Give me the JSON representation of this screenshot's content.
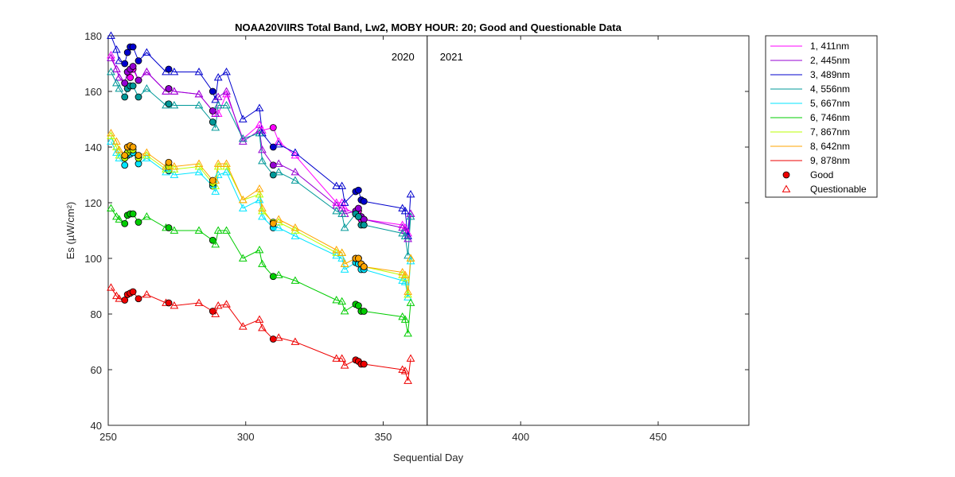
{
  "chart_data": {
    "type": "line",
    "title": "NOAA20VIIRS Total Band,  Lw2, MOBY HOUR: 20;  Good and Questionable Data",
    "xlabel": "Sequential Day",
    "ylabel": "Es (µW/cm²)",
    "xlim": [
      250,
      483
    ],
    "ylim": [
      40,
      180
    ],
    "xticks": [
      250,
      300,
      350,
      400,
      450
    ],
    "yticks": [
      40,
      60,
      80,
      100,
      120,
      140,
      160,
      180
    ],
    "grid": false,
    "legend_placement": "outside-right",
    "year_divider_x": 366,
    "year_labels": [
      {
        "text": "2020",
        "x": 366,
        "side": "left"
      },
      {
        "text": "2021",
        "x": 366,
        "side": "right"
      }
    ],
    "legend": {
      "good": "Good",
      "questionable": "Questionable"
    },
    "days": [
      251,
      253,
      254,
      256,
      257,
      258,
      259,
      261,
      264,
      271,
      272,
      274,
      283,
      288,
      289,
      290,
      293,
      299,
      305,
      306,
      310,
      312,
      318,
      333,
      335,
      336,
      340,
      341,
      342,
      343,
      357,
      358,
      359,
      360
    ],
    "quality": [
      "Q",
      "Q",
      "Q",
      "G",
      "G",
      "G",
      "G",
      "G",
      "Q",
      "Q",
      "G",
      "Q",
      "Q",
      "G",
      "Q",
      "Q",
      "Q",
      "Q",
      "Q",
      "Q",
      "G",
      "Q",
      "Q",
      "Q",
      "Q",
      "Q",
      "G",
      "G",
      "G",
      "G",
      "Q",
      "Q",
      "Q",
      "Q"
    ],
    "series": [
      {
        "name": "1, 411nm",
        "color": "#ff00ff",
        "values": [
          173,
          168,
          165,
          163,
          167,
          165,
          168,
          164,
          167,
          160,
          161,
          160,
          159,
          153,
          152,
          152,
          159,
          143,
          148,
          146,
          147,
          142,
          137,
          120,
          120,
          118,
          116,
          117,
          114,
          114,
          112,
          111,
          109,
          116
        ]
      },
      {
        "name": "2, 445nm",
        "color": "#9400d3",
        "values": [
          172,
          168,
          165,
          163,
          167,
          168,
          169,
          164,
          167,
          160,
          161,
          160,
          159,
          153,
          152,
          158,
          160,
          142,
          146,
          139,
          133.5,
          134,
          131,
          119,
          118,
          116,
          117,
          118,
          115,
          114,
          111,
          110,
          107,
          116
        ]
      },
      {
        "name": "3, 489nm",
        "color": "#0000cd",
        "values": [
          180,
          175,
          171,
          170,
          174,
          176,
          176,
          171,
          174,
          167,
          168,
          167,
          167,
          160,
          157,
          165,
          167,
          150,
          154,
          145,
          140,
          141,
          138,
          126,
          126,
          120,
          124,
          124.5,
          121,
          120.5,
          118,
          117,
          108,
          123
        ]
      },
      {
        "name": "4, 556nm",
        "color": "#009999",
        "values": [
          167,
          163,
          161,
          158,
          161,
          162,
          162,
          158,
          161,
          155,
          155.5,
          155,
          155,
          149,
          147,
          155,
          155,
          143,
          145,
          135,
          130,
          131,
          128,
          117,
          116,
          111,
          116,
          115,
          112,
          112,
          109,
          108,
          101,
          115
        ]
      },
      {
        "name": "5, 667nm",
        "color": "#00e5ff",
        "values": [
          142,
          138,
          136,
          133.5,
          137,
          137.5,
          138,
          134,
          136,
          131,
          131.5,
          130,
          131,
          126,
          124,
          130,
          131,
          118,
          121,
          115,
          111,
          111,
          108,
          101,
          100,
          96,
          98.5,
          98,
          96,
          96,
          92,
          91.5,
          86,
          99
        ]
      },
      {
        "name": "6, 746nm",
        "color": "#00cc00",
        "values": [
          118,
          115,
          114,
          112.5,
          115.5,
          116,
          116,
          113,
          115,
          111,
          111,
          110,
          110,
          106.5,
          105,
          110,
          110,
          100,
          103,
          98,
          93.5,
          94,
          92,
          85,
          84.5,
          81,
          83.5,
          83,
          81,
          81,
          79,
          78,
          73,
          84
        ]
      },
      {
        "name": "7, 867nm",
        "color": "#bbff00",
        "values": [
          144,
          140,
          137,
          136,
          138,
          139,
          139,
          136,
          137,
          132,
          133,
          132,
          133,
          127,
          126,
          133,
          133,
          121,
          123,
          117,
          113,
          113,
          110,
          102,
          102,
          98,
          100,
          100,
          98,
          97,
          94,
          93,
          87,
          100
        ]
      },
      {
        "name": "8, 642nm",
        "color": "#ffa500",
        "values": [
          145,
          142,
          139,
          137,
          140,
          140.5,
          140,
          137,
          138,
          133,
          134.5,
          133,
          134,
          128,
          128,
          134,
          134,
          121,
          125,
          118,
          112.5,
          114,
          111,
          103,
          102,
          98,
          100,
          100,
          98,
          97,
          95,
          94,
          88,
          100
        ]
      },
      {
        "name": "9, 878nm",
        "color": "#ee0000",
        "values": [
          89.5,
          86.5,
          85.5,
          85,
          87,
          87.5,
          88,
          85.5,
          87,
          84,
          84,
          83,
          84,
          81,
          80,
          83,
          83.5,
          75.5,
          78,
          75,
          71,
          71.5,
          70,
          64,
          64,
          61.5,
          63.5,
          63,
          62,
          62,
          60,
          59.5,
          56,
          64
        ]
      }
    ]
  }
}
